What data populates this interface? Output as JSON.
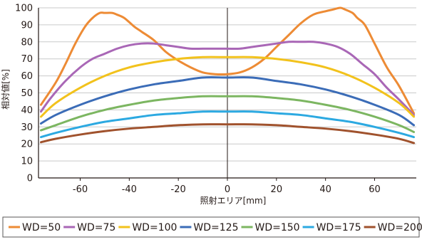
{
  "chart_data": {
    "type": "line",
    "title": "",
    "xlabel": "照射エリア[mm]",
    "ylabel": "相対値[%]",
    "xlim": [
      -77,
      77
    ],
    "ylim": [
      0,
      100
    ],
    "xticks": [
      -60,
      -40,
      -20,
      0,
      20,
      40,
      60
    ],
    "yticks": [
      0,
      10,
      20,
      30,
      40,
      50,
      60,
      70,
      80,
      90,
      100
    ],
    "grid": "horizontal",
    "legend": "bottom",
    "series": [
      {
        "name": "WD=50",
        "color": "#ED8B35",
        "x": [
          -76,
          -70,
          -66,
          -62,
          -58,
          -55,
          -52,
          -50,
          -47,
          -45,
          -42,
          -38,
          -35,
          -30,
          -25,
          -20,
          -15,
          -10,
          -5,
          0,
          5,
          10,
          15,
          20,
          25,
          30,
          35,
          40,
          43,
          46,
          48,
          51,
          53,
          56,
          60,
          65,
          70,
          76
        ],
        "y": [
          43,
          56,
          67,
          79,
          89,
          94,
          97,
          97,
          97,
          96,
          94,
          89,
          86,
          81,
          74,
          69,
          65,
          62,
          61,
          61,
          62,
          65,
          70,
          77,
          84,
          91,
          96,
          98,
          99,
          100,
          99,
          97,
          94,
          90,
          79,
          65,
          54,
          38
        ]
      },
      {
        "name": "WD=75",
        "color": "#A967B6",
        "x": [
          -76,
          -72,
          -66,
          -60,
          -55,
          -50,
          -45,
          -40,
          -35,
          -30,
          -25,
          -20,
          -15,
          -10,
          -5,
          0,
          5,
          10,
          15,
          20,
          25,
          30,
          35,
          40,
          45,
          50,
          55,
          60,
          65,
          70,
          76
        ],
        "y": [
          39,
          47,
          57,
          65,
          70,
          73,
          76,
          78,
          79,
          79,
          78,
          77,
          76,
          76,
          76,
          76,
          76,
          77,
          78,
          79,
          80,
          80,
          80,
          79,
          77,
          73,
          67,
          61,
          53,
          46,
          37
        ]
      },
      {
        "name": "WD=100",
        "color": "#F2C21C",
        "x": [
          -76,
          -70,
          -60,
          -50,
          -40,
          -30,
          -20,
          -10,
          0,
          10,
          20,
          30,
          40,
          50,
          60,
          70,
          76
        ],
        "y": [
          36,
          44,
          53,
          60,
          65,
          68,
          70,
          71,
          71,
          71,
          70,
          68,
          65,
          60,
          53,
          44,
          36
        ]
      },
      {
        "name": "WD=125",
        "color": "#3B6CB7",
        "x": [
          -76,
          -70,
          -60,
          -50,
          -40,
          -30,
          -20,
          -10,
          0,
          10,
          20,
          30,
          40,
          50,
          60,
          70,
          76
        ],
        "y": [
          32,
          37,
          43,
          48,
          52,
          55,
          57,
          59,
          59,
          59,
          57,
          55,
          52,
          48,
          43,
          37,
          31
        ]
      },
      {
        "name": "WD=150",
        "color": "#7CB661",
        "x": [
          -76,
          -70,
          -60,
          -50,
          -40,
          -30,
          -20,
          -10,
          0,
          10,
          20,
          30,
          40,
          50,
          60,
          70,
          76
        ],
        "y": [
          28,
          31,
          36,
          40,
          43,
          45.5,
          47,
          48,
          48,
          48,
          47,
          45.5,
          43,
          40,
          36,
          31,
          27
        ]
      },
      {
        "name": "WD=175",
        "color": "#2CA9E1",
        "x": [
          -76,
          -70,
          -60,
          -50,
          -40,
          -30,
          -20,
          -10,
          0,
          10,
          20,
          30,
          40,
          50,
          60,
          70,
          76
        ],
        "y": [
          24,
          26.5,
          30,
          33,
          35,
          37,
          38,
          39,
          39,
          39,
          38,
          37,
          35,
          33,
          30,
          26.5,
          24
        ]
      },
      {
        "name": "WD=200",
        "color": "#A0522D",
        "x": [
          -76,
          -70,
          -60,
          -50,
          -40,
          -30,
          -20,
          -10,
          0,
          10,
          20,
          30,
          40,
          50,
          60,
          70,
          76
        ],
        "y": [
          21,
          23,
          25.5,
          27.5,
          29,
          30,
          31,
          31.5,
          31.5,
          31.5,
          31,
          30,
          29,
          27.5,
          25.5,
          23,
          20.5
        ]
      }
    ]
  }
}
